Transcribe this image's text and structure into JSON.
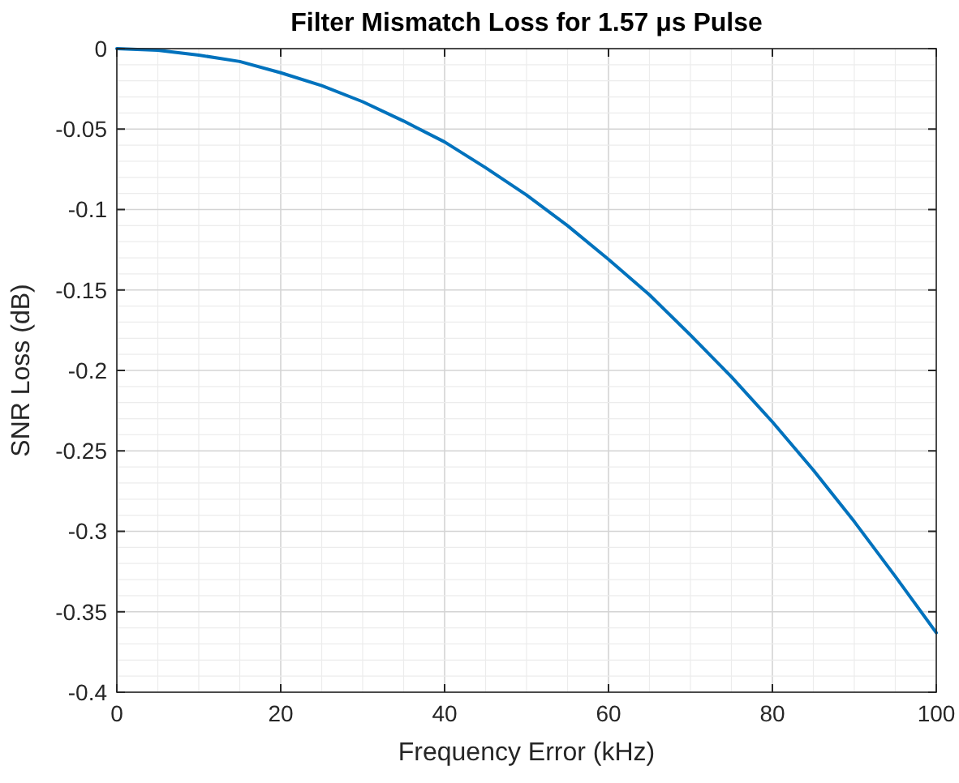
{
  "chart_data": {
    "type": "line",
    "title": "Filter Mismatch Loss for 1.57 μs Pulse",
    "xlabel": "Frequency Error (kHz)",
    "ylabel": "SNR Loss (dB)",
    "x": [
      0,
      5,
      10,
      15,
      20,
      25,
      30,
      35,
      40,
      45,
      50,
      55,
      60,
      65,
      70,
      75,
      80,
      85,
      90,
      95,
      100
    ],
    "series": [
      {
        "color": "#0072bd",
        "values": [
          0,
          -0.001,
          -0.004,
          -0.008,
          -0.015,
          -0.023,
          -0.033,
          -0.045,
          -0.058,
          -0.074,
          -0.091,
          -0.11,
          -0.131,
          -0.153,
          -0.178,
          -0.204,
          -0.232,
          -0.262,
          -0.294,
          -0.328,
          -0.363
        ]
      }
    ],
    "xlim": [
      0,
      100
    ],
    "ylim": [
      -0.4,
      0
    ],
    "xticks": [
      0,
      {
        "value": 5,
        "label": null
      },
      {
        "value": 10,
        "label": null
      },
      {
        "value": 15,
        "label": null
      },
      20,
      {
        "value": 25,
        "label": null
      },
      {
        "value": 30,
        "label": null
      },
      {
        "value": 35,
        "label": null
      },
      40,
      {
        "value": 45,
        "label": null
      },
      {
        "value": 50,
        "label": null
      },
      {
        "value": 55,
        "label": null
      },
      60,
      {
        "value": 65,
        "label": null
      },
      {
        "value": 70,
        "label": null
      },
      {
        "value": 75,
        "label": null
      },
      80,
      {
        "value": 85,
        "label": null
      },
      {
        "value": 90,
        "label": null
      },
      {
        "value": 95,
        "label": null
      },
      100
    ],
    "yticks": [
      {
        "value": -0.4,
        "label": "-0.4"
      },
      {
        "value": -0.39,
        "label": null
      },
      {
        "value": -0.38,
        "label": null
      },
      {
        "value": -0.37,
        "label": null
      },
      {
        "value": -0.36,
        "label": null
      },
      {
        "value": -0.35,
        "label": "-0.35"
      },
      {
        "value": -0.34,
        "label": null
      },
      {
        "value": -0.33,
        "label": null
      },
      {
        "value": -0.32,
        "label": null
      },
      {
        "value": -0.31,
        "label": null
      },
      {
        "value": -0.3,
        "label": "-0.3"
      },
      {
        "value": -0.29,
        "label": null
      },
      {
        "value": -0.28,
        "label": null
      },
      {
        "value": -0.27,
        "label": null
      },
      {
        "value": -0.26,
        "label": null
      },
      {
        "value": -0.25,
        "label": "-0.25"
      },
      {
        "value": -0.24,
        "label": null
      },
      {
        "value": -0.23,
        "label": null
      },
      {
        "value": -0.22,
        "label": null
      },
      {
        "value": -0.21,
        "label": null
      },
      {
        "value": -0.2,
        "label": "-0.2"
      },
      {
        "value": -0.19,
        "label": null
      },
      {
        "value": -0.18,
        "label": null
      },
      {
        "value": -0.17,
        "label": null
      },
      {
        "value": -0.16,
        "label": null
      },
      {
        "value": -0.15,
        "label": "-0.15"
      },
      {
        "value": -0.14,
        "label": null
      },
      {
        "value": -0.13,
        "label": null
      },
      {
        "value": -0.12,
        "label": null
      },
      {
        "value": -0.11,
        "label": null
      },
      {
        "value": -0.1,
        "label": "-0.1"
      },
      {
        "value": -0.09,
        "label": null
      },
      {
        "value": -0.08,
        "label": null
      },
      {
        "value": -0.07,
        "label": null
      },
      {
        "value": -0.06,
        "label": null
      },
      {
        "value": -0.05,
        "label": "-0.05"
      },
      {
        "value": -0.04,
        "label": null
      },
      {
        "value": -0.03,
        "label": null
      },
      {
        "value": -0.02,
        "label": null
      },
      {
        "value": -0.01,
        "label": null
      },
      {
        "value": 0,
        "label": "0"
      }
    ],
    "grid": true,
    "line_style": "solid",
    "marker": "none"
  }
}
